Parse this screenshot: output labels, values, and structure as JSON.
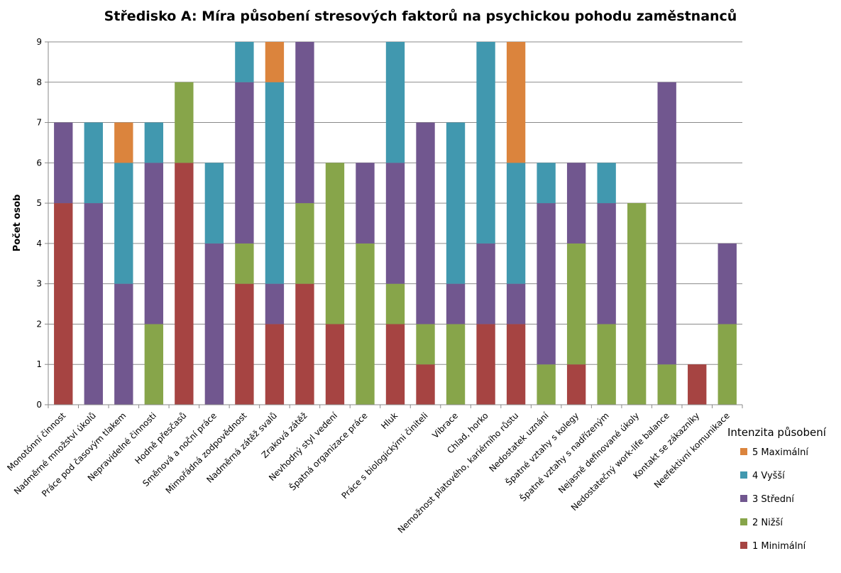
{
  "chart_data": {
    "type": "bar",
    "stacked": true,
    "title": "Středisko A: Míra působení stresových faktorů na psychickou pohodu zaměstnanců",
    "xlabel": "",
    "ylabel": "Počet osob",
    "ylim": [
      0,
      9
    ],
    "yticks": [
      0,
      1,
      2,
      3,
      4,
      5,
      6,
      7,
      8,
      9
    ],
    "grid": true,
    "legend_title": "Intenzita působení",
    "legend_position": "right",
    "categories": [
      "Monotónní činnost",
      "Nadměrné množství úkolů",
      "Práce pod časovým tlakem",
      "Nepravidelné činnosti",
      "Hodně přesčasů",
      "Směnová a noční práce",
      "Mimořádná zodpovědnost",
      "Nadměrná zátěž svalů",
      "Zraková zátěž",
      "Nevhodný styl vedení",
      "Špatná organizace práce",
      "Hluk",
      "Práce s biologickými činiteli",
      "Vibrace",
      "Chlad, horko",
      "Nemožnost platového, kariérního růstu",
      "Nedostatek uznání",
      "Špatné vztahy s kolegy",
      "Špatné vztahy s nadřízeným",
      "Nejasně definované úkoly",
      "Nedostatečný work-life balance",
      "Kontakt se zákazníky",
      "Neefektivní komunikace"
    ],
    "series": [
      {
        "name": "1 Minimální",
        "color": "#A64442",
        "values": [
          5,
          0,
          0,
          0,
          6,
          0,
          3,
          2,
          3,
          2,
          0,
          2,
          1,
          0,
          2,
          2,
          0,
          1,
          0,
          0,
          0,
          1,
          0
        ]
      },
      {
        "name": "2 Nižší",
        "color": "#87A54A",
        "values": [
          0,
          0,
          0,
          2,
          2,
          0,
          1,
          0,
          2,
          4,
          4,
          1,
          1,
          2,
          0,
          0,
          1,
          3,
          2,
          5,
          1,
          0,
          2
        ]
      },
      {
        "name": "3 Střední",
        "color": "#71578F",
        "values": [
          2,
          5,
          3,
          4,
          0,
          4,
          4,
          1,
          4,
          0,
          2,
          3,
          5,
          1,
          2,
          1,
          4,
          2,
          3,
          0,
          7,
          0,
          2
        ]
      },
      {
        "name": "4 Vyšší",
        "color": "#4198AF",
        "values": [
          0,
          2,
          3,
          1,
          0,
          2,
          1,
          5,
          0,
          0,
          0,
          3,
          0,
          4,
          5,
          3,
          1,
          0,
          1,
          0,
          0,
          0,
          0
        ]
      },
      {
        "name": "5 Maximální",
        "color": "#DB843D",
        "values": [
          0,
          0,
          1,
          0,
          0,
          0,
          0,
          1,
          0,
          0,
          0,
          0,
          0,
          0,
          0,
          3,
          0,
          0,
          0,
          0,
          0,
          0,
          0
        ]
      }
    ],
    "legend_order": [
      "5 Maximální",
      "4 Vyšší",
      "3 Střední",
      "2 Nižší",
      "1 Minimální"
    ]
  }
}
